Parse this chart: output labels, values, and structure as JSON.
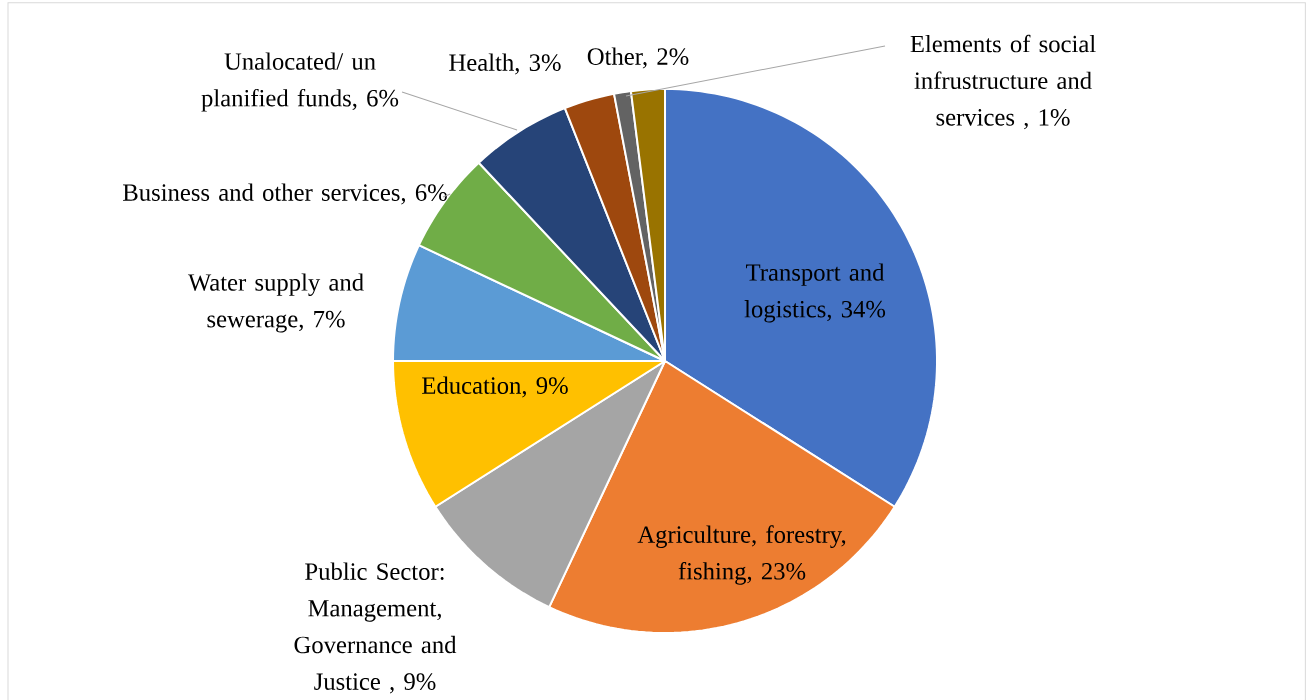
{
  "chart_data": {
    "type": "pie",
    "categories": [
      "Transport and logistics, 34%",
      "Agriculture, forestry, fishing, 23%",
      "Public Sector: Management, Governance and Justice , 9%",
      "Education, 9%",
      "Water supply and sewerage, 7%",
      "Business and other services, 6%",
      "Unalocated/ un planified funds, 6%",
      "Health, 3%",
      "Elements of social infrustructure and services , 1%",
      "Other, 2%"
    ],
    "values": [
      34,
      23,
      9,
      9,
      7,
      6,
      6,
      3,
      1,
      2
    ],
    "colors": [
      "#4472c4",
      "#ed7d31",
      "#a5a5a5",
      "#ffc000",
      "#5b9bd5",
      "#70ad47",
      "#264478",
      "#9e480e",
      "#636363",
      "#997300"
    ]
  }
}
